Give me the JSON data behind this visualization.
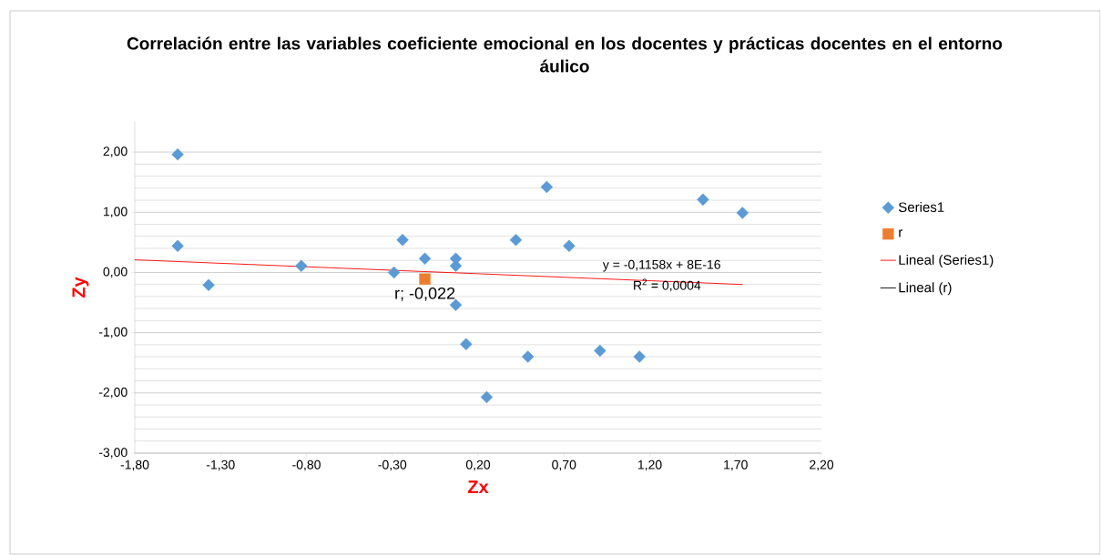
{
  "chart_data": {
    "type": "scatter",
    "title": "Correlación entre las variables coeficiente emocional en los docentes y prácticas docentes en el entorno áulico",
    "xlabel": "Zx",
    "ylabel": "Zy",
    "xlim": [
      -1.8,
      2.2
    ],
    "ylim": [
      -3,
      2.5
    ],
    "xticks": [
      {
        "value": -1.8,
        "label": "-1,80"
      },
      {
        "value": -1.3,
        "label": "-1,30"
      },
      {
        "value": -0.8,
        "label": "-0,80"
      },
      {
        "value": -0.3,
        "label": "-0,30"
      },
      {
        "value": 0.2,
        "label": "0,20"
      },
      {
        "value": 0.7,
        "label": "0,70"
      },
      {
        "value": 1.2,
        "label": "1,20"
      },
      {
        "value": 1.7,
        "label": "1,70"
      },
      {
        "value": 2.2,
        "label": "2,20"
      }
    ],
    "yticks": [
      {
        "value": -3,
        "label": "-3,00"
      },
      {
        "value": -2,
        "label": "-2,00"
      },
      {
        "value": -1,
        "label": "-1,00"
      },
      {
        "value": 0,
        "label": "0,00"
      },
      {
        "value": 1,
        "label": "1,00"
      },
      {
        "value": 2,
        "label": "2,00"
      }
    ],
    "grid": "y",
    "legend": "right",
    "series": [
      {
        "name": "Series1",
        "marker": "diamond",
        "color": "#5b9bd5",
        "x": [
          -1.55,
          -1.55,
          -1.37,
          -0.83,
          -0.29,
          -0.24,
          -0.11,
          0.07,
          0.07,
          0.07,
          0.13,
          0.25,
          0.42,
          0.49,
          0.6,
          0.73,
          0.91,
          1.14,
          1.51,
          1.74
        ],
        "values": [
          1.96,
          0.44,
          -0.21,
          0.11,
          0.0,
          0.54,
          0.23,
          0.23,
          0.11,
          -0.54,
          -1.19,
          -2.07,
          0.54,
          -1.4,
          1.42,
          0.44,
          -1.3,
          -1.4,
          1.21,
          0.99
        ]
      },
      {
        "name": "r",
        "marker": "square",
        "color": "#ed7d31",
        "x": [
          -0.11
        ],
        "values": [
          -0.11
        ]
      },
      {
        "name": "Lineal (Series1)",
        "type": "line",
        "color": "#ff0000",
        "x": [
          -1.8,
          1.74
        ],
        "values": [
          0.21,
          -0.2
        ]
      },
      {
        "name": "Lineal (r)",
        "type": "line",
        "color": "#000000"
      }
    ],
    "annotations": [
      {
        "text": "r; -0,022",
        "x": -0.11,
        "y": -0.11
      },
      "y = -0,1158x + 8E-16",
      "R$^{2}$ = 0,0004"
    ]
  }
}
